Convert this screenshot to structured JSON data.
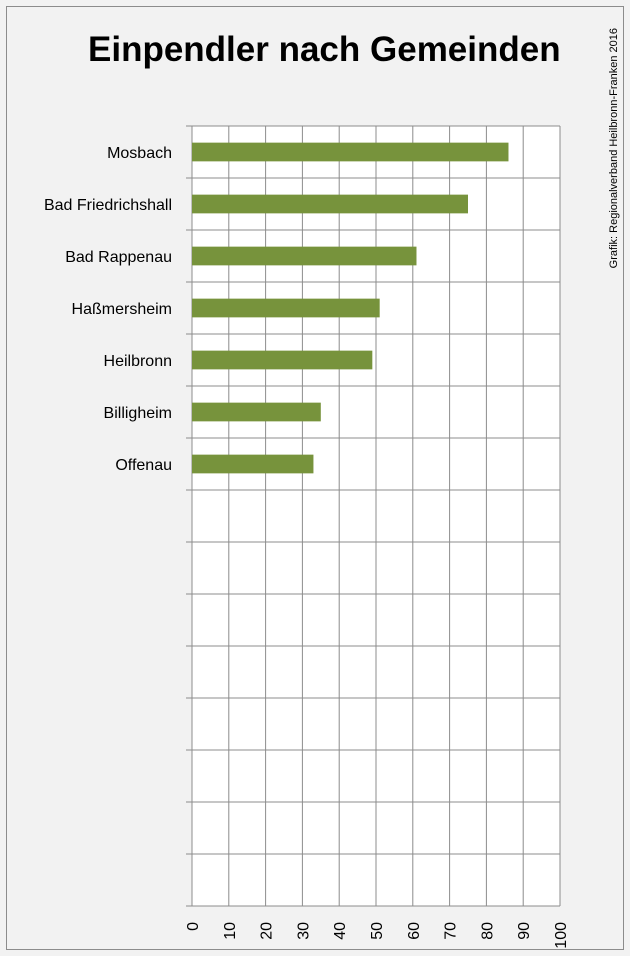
{
  "chart_data": {
    "type": "bar",
    "orientation": "horizontal",
    "title": "Einpendler nach Gemeinden",
    "source_note": "Grafik: Regionalverband Heilbronn-Franken 2016",
    "categories": [
      "Mosbach",
      "Bad Friedrichshall",
      "Bad Rappenau",
      "Haßmersheim",
      "Heilbronn",
      "Billigheim",
      "Offenau"
    ],
    "values": [
      86,
      75,
      61,
      51,
      49,
      35,
      33
    ],
    "xlim": [
      0,
      100
    ],
    "ticks": [
      "0",
      "10",
      "20",
      "30",
      "40",
      "50",
      "60",
      "70",
      "80",
      "90",
      "100"
    ],
    "grid": true,
    "bar_color": "#77933c"
  }
}
